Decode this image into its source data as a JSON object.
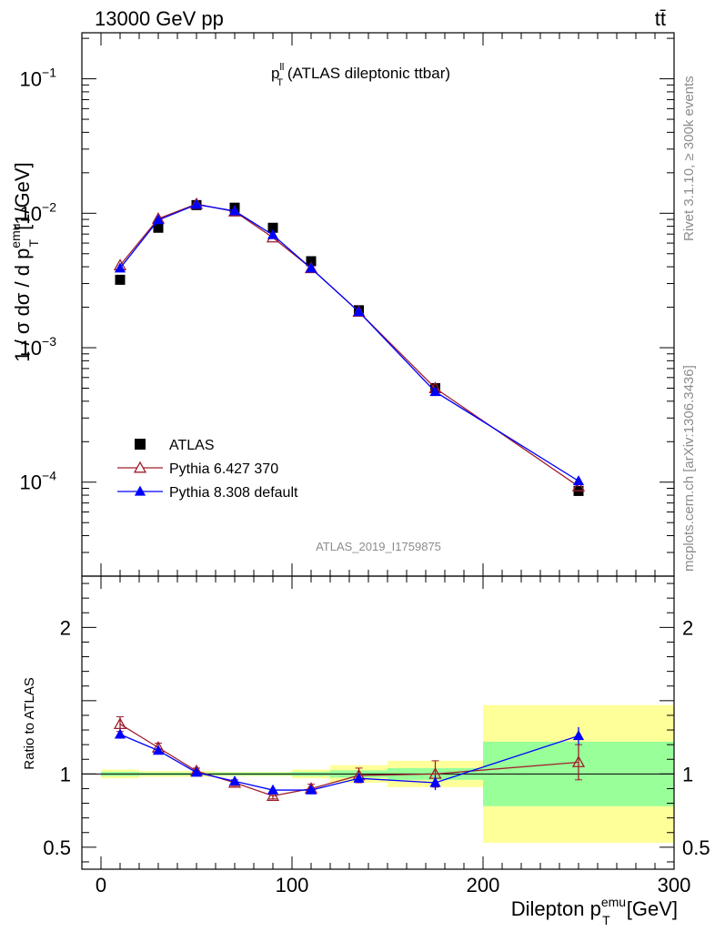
{
  "header": {
    "left": "13000 GeV pp",
    "right": "tt̄"
  },
  "side_labels": {
    "rivet": "Rivet 3.1.10, ≥ 300k events",
    "mcplots": "mcplots.cern.ch [arXiv:1306.3436]"
  },
  "watermark": "ATLAS_2019_I1759875",
  "colors": {
    "data": "#000000",
    "pythia6": "#a01e2d",
    "pythia8": "#0000ff",
    "band_inner": "#99ff99",
    "band_outer": "#ffff99"
  },
  "chart_data": [
    {
      "type": "scatter",
      "title_main": "p",
      "title_sup": "ll",
      "title_sub": "T",
      "title_rest": " (ATLAS dileptonic ttbar)",
      "ylabel": "1 / σ dσ / d p_T^emu [1/GeV]",
      "yscale": "log",
      "ylim": [
        2e-05,
        0.22
      ],
      "xlim": [
        -10,
        300
      ],
      "y_ticks": [
        {
          "mant": "10",
          "exp": "−1",
          "value": 0.1
        },
        {
          "mant": "10",
          "exp": "−2",
          "value": 0.01
        },
        {
          "mant": "10",
          "exp": "−3",
          "value": 0.001
        },
        {
          "mant": "10",
          "exp": "−4",
          "value": 0.0001
        }
      ],
      "legend_placement": "bottom-left",
      "series": [
        {
          "name": "ATLAS",
          "marker": "square",
          "x": [
            10,
            30,
            50,
            70,
            90,
            110,
            135,
            175,
            250
          ],
          "y": [
            0.0032,
            0.0078,
            0.0115,
            0.011,
            0.0078,
            0.0044,
            0.0019,
            0.0005,
            8.6e-05
          ]
        },
        {
          "name": "Pythia 6.427 370",
          "marker": "open-triangle",
          "x": [
            10,
            30,
            50,
            70,
            90,
            110,
            135,
            175,
            250
          ],
          "y": [
            0.0041,
            0.0091,
            0.0117,
            0.0103,
            0.0066,
            0.0039,
            0.00185,
            0.0005,
            9.3e-05
          ]
        },
        {
          "name": "Pythia 8.308 default",
          "marker": "filled-triangle",
          "x": [
            10,
            30,
            50,
            70,
            90,
            110,
            135,
            175,
            250
          ],
          "y": [
            0.0039,
            0.0089,
            0.0116,
            0.0104,
            0.0069,
            0.0039,
            0.00185,
            0.00047,
            0.000102
          ]
        }
      ]
    },
    {
      "type": "scatter",
      "ylabel": "Ratio to ATLAS",
      "xlabel": "Dilepton p_T^emu [GeV]",
      "xlabel_main": "Dilepton p",
      "xlabel_sup": "emu",
      "xlabel_sub": "T",
      "xlabel_rest": " [GeV]",
      "ylim": [
        0.35,
        2.35
      ],
      "xlim": [
        -10,
        300
      ],
      "x_ticks": [
        "0",
        "100",
        "200",
        "300"
      ],
      "x_tick_values": [
        0,
        100,
        200,
        300
      ],
      "y_ticks": [
        "0.5",
        "1",
        "2"
      ],
      "y_tick_values": [
        0.5,
        1,
        2
      ],
      "bands": {
        "edges": [
          0,
          20,
          40,
          60,
          80,
          100,
          120,
          150,
          200,
          300
        ],
        "inner": [
          0.015,
          0.01,
          0.01,
          0.01,
          0.01,
          0.015,
          0.025,
          0.04,
          0.22
        ],
        "outer": [
          0.03,
          0.02,
          0.02,
          0.015,
          0.015,
          0.03,
          0.06,
          0.09,
          0.47
        ]
      },
      "series": [
        {
          "name": "Pythia 6.427 370",
          "x": [
            10,
            30,
            50,
            70,
            90,
            110,
            135,
            175,
            250
          ],
          "y": [
            1.34,
            1.18,
            1.02,
            0.94,
            0.85,
            0.9,
            0.99,
            1.0,
            1.08
          ],
          "err": [
            0.05,
            0.03,
            0.02,
            0.02,
            0.02,
            0.03,
            0.05,
            0.09,
            0.12
          ]
        },
        {
          "name": "Pythia 8.308 default",
          "x": [
            10,
            30,
            50,
            70,
            90,
            110,
            135,
            175,
            250
          ],
          "y": [
            1.27,
            1.16,
            1.01,
            0.95,
            0.89,
            0.89,
            0.97,
            0.94,
            1.26
          ],
          "err": [
            0.03,
            0.02,
            0.02,
            0.02,
            0.02,
            0.02,
            0.03,
            0.05,
            0.06
          ]
        }
      ]
    }
  ]
}
